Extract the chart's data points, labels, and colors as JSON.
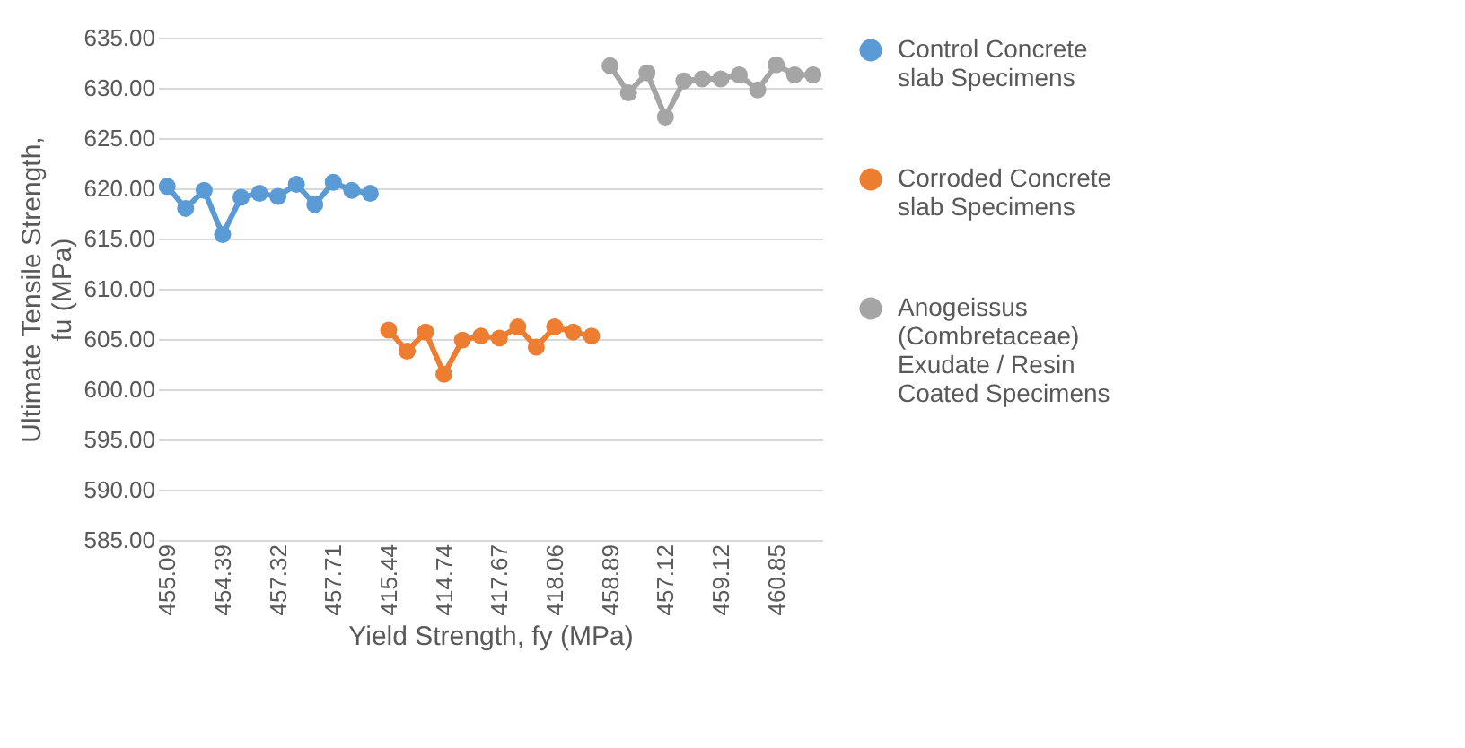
{
  "chart_data": {
    "type": "line",
    "xlabel": "Yield  Strength, fy (MPa)",
    "ylabel": "Ultimate Tensile Strength, fu (MPa)",
    "categories": [
      "455.09",
      null,
      null,
      "454.39",
      null,
      null,
      "457.32",
      null,
      null,
      "457.71",
      null,
      null,
      "415.44",
      null,
      null,
      "414.74",
      null,
      null,
      "417.67",
      null,
      null,
      "418.06",
      null,
      null,
      "458.89",
      null,
      null,
      "457.12",
      null,
      null,
      "459.12",
      null,
      null,
      "460.85",
      null,
      null
    ],
    "series": [
      {
        "name": "Control  Concrete slab Specimens",
        "color": "#5b9bd5",
        "values": [
          620.2,
          618.0,
          619.8,
          615.4,
          619.1,
          619.5,
          619.2,
          620.4,
          618.4,
          620.6,
          619.8,
          619.5,
          null,
          null,
          null,
          null,
          null,
          null,
          null,
          null,
          null,
          null,
          null,
          null,
          null,
          null,
          null,
          null,
          null,
          null,
          null,
          null,
          null,
          null,
          null,
          null
        ]
      },
      {
        "name": "Corroded Concrete slab Specimens",
        "color": "#ed7d31",
        "values": [
          null,
          null,
          null,
          null,
          null,
          null,
          null,
          null,
          null,
          null,
          null,
          null,
          605.9,
          603.8,
          605.7,
          601.5,
          604.9,
          605.3,
          605.1,
          606.2,
          604.2,
          606.2,
          605.7,
          605.3,
          null,
          null,
          null,
          null,
          null,
          null,
          null,
          null,
          null,
          null,
          null,
          null
        ]
      },
      {
        "name": "Anogeissus (Combretaceae) Exudate / Resin Coated Specimens",
        "color": "#a5a5a5",
        "values": [
          null,
          null,
          null,
          null,
          null,
          null,
          null,
          null,
          null,
          null,
          null,
          null,
          null,
          null,
          null,
          null,
          null,
          null,
          null,
          null,
          null,
          null,
          null,
          null,
          632.2,
          629.5,
          631.5,
          627.1,
          630.7,
          630.9,
          630.9,
          631.3,
          629.8,
          632.3,
          631.3,
          631.3
        ]
      }
    ],
    "ylim": [
      585,
      635
    ],
    "yticks": [
      {
        "value": 585,
        "label": "585.00"
      },
      {
        "value": 590,
        "label": "590.00"
      },
      {
        "value": 595,
        "label": "595.00"
      },
      {
        "value": 600,
        "label": "600.00"
      },
      {
        "value": 605,
        "label": "605.00"
      },
      {
        "value": 610,
        "label": "610.00"
      },
      {
        "value": 615,
        "label": "615.00"
      },
      {
        "value": 620,
        "label": "620.00"
      },
      {
        "value": 625,
        "label": "625.00"
      },
      {
        "value": 630,
        "label": "630.00"
      },
      {
        "value": 635,
        "label": "635.00"
      }
    ],
    "grid": "y",
    "legend": "right",
    "marker": "circle",
    "line_style": "solid"
  }
}
